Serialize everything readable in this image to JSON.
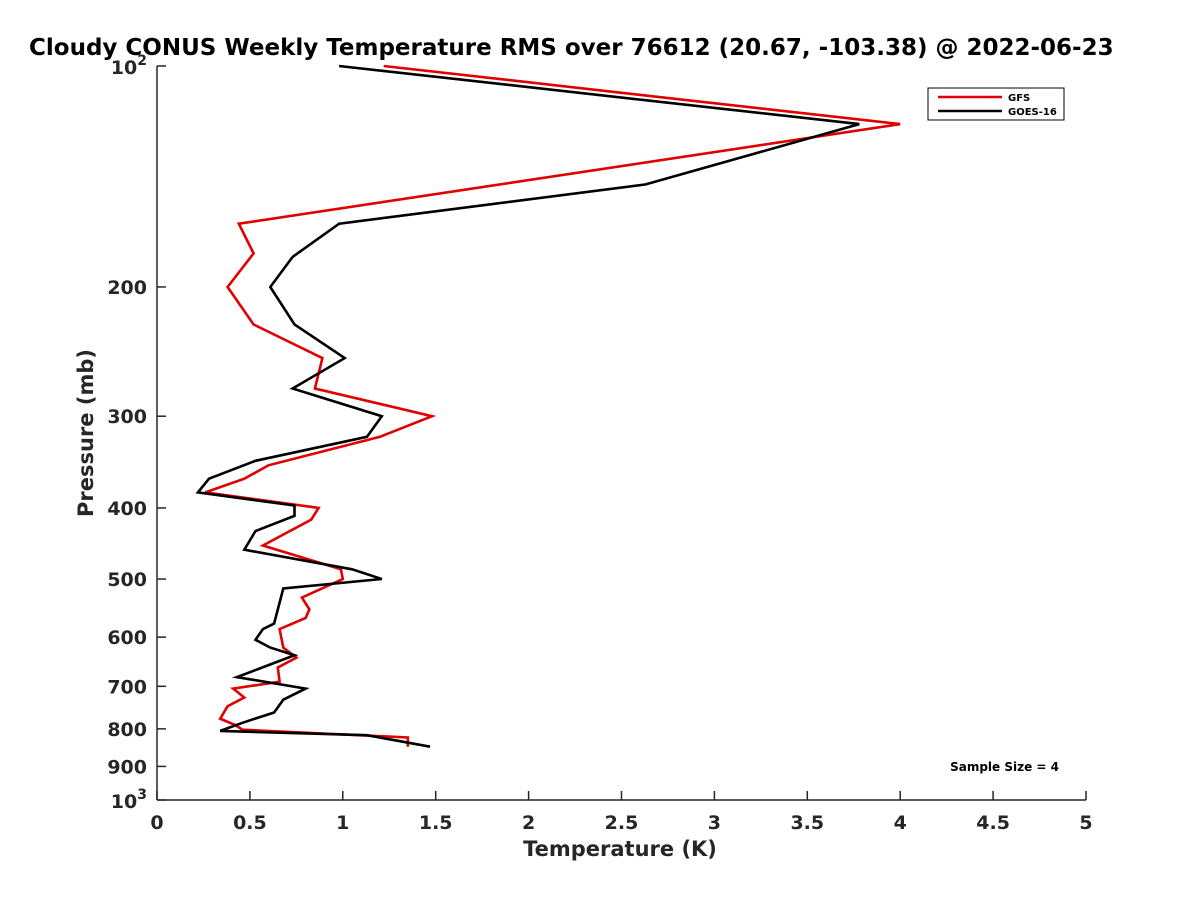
{
  "chart_data": {
    "type": "line",
    "title": "Cloudy CONUS Weekly Temperature RMS over 76612 (20.67, -103.38) @ 2022-06-23",
    "xlabel": "Temperature (K)",
    "ylabel": "Pressure (mb)",
    "xlim": [
      0,
      5
    ],
    "ylim": [
      100,
      1000
    ],
    "y_scale": "log",
    "y_reversed": true,
    "x_ticks": [
      0,
      0.5,
      1,
      1.5,
      2,
      2.5,
      3,
      3.5,
      4,
      4.5,
      5
    ],
    "x_tick_labels": [
      "0",
      "0.5",
      "1",
      "1.5",
      "2",
      "2.5",
      "3",
      "3.5",
      "4",
      "4.5",
      "5"
    ],
    "y_ticks": [
      100,
      200,
      300,
      400,
      500,
      600,
      700,
      800,
      900,
      1000
    ],
    "y_tick_labels": [
      {
        "text": "10",
        "sup": "2"
      },
      {
        "text": "200"
      },
      {
        "text": "300"
      },
      {
        "text": "400"
      },
      {
        "text": "500"
      },
      {
        "text": "600"
      },
      {
        "text": "700"
      },
      {
        "text": "800"
      },
      {
        "text": "900"
      },
      {
        "text": "10",
        "sup": "3"
      }
    ],
    "grid": false,
    "legend_position": "top-right",
    "annotation": "Sample Size = 4",
    "series": [
      {
        "name": "GFS",
        "color": "#e00000",
        "points": [
          [
            1.22,
            100
          ],
          [
            4.0,
            120
          ],
          [
            0.44,
            164
          ],
          [
            0.52,
            180
          ],
          [
            0.38,
            200
          ],
          [
            0.52,
            225
          ],
          [
            0.89,
            250
          ],
          [
            0.85,
            275
          ],
          [
            1.48,
            300
          ],
          [
            1.2,
            320
          ],
          [
            0.6,
            350
          ],
          [
            0.47,
            365
          ],
          [
            0.26,
            381
          ],
          [
            0.87,
            400
          ],
          [
            0.83,
            415
          ],
          [
            0.57,
            450
          ],
          [
            0.99,
            485
          ],
          [
            1.0,
            500
          ],
          [
            0.78,
            530
          ],
          [
            0.82,
            550
          ],
          [
            0.8,
            565
          ],
          [
            0.66,
            585
          ],
          [
            0.68,
            620
          ],
          [
            0.75,
            640
          ],
          [
            0.65,
            660
          ],
          [
            0.66,
            690
          ],
          [
            0.41,
            705
          ],
          [
            0.47,
            725
          ],
          [
            0.38,
            745
          ],
          [
            0.34,
            775
          ],
          [
            0.42,
            790
          ],
          [
            0.46,
            802
          ],
          [
            1.35,
            822
          ],
          [
            1.35,
            846
          ]
        ]
      },
      {
        "name": "GOES-16",
        "color": "#000000",
        "points": [
          [
            0.98,
            100
          ],
          [
            3.78,
            120
          ],
          [
            2.63,
            145
          ],
          [
            0.98,
            164
          ],
          [
            0.73,
            182
          ],
          [
            0.61,
            200
          ],
          [
            0.74,
            225
          ],
          [
            1.01,
            250
          ],
          [
            0.73,
            275
          ],
          [
            1.21,
            300
          ],
          [
            1.13,
            320
          ],
          [
            0.53,
            345
          ],
          [
            0.28,
            365
          ],
          [
            0.22,
            381
          ],
          [
            0.74,
            397
          ],
          [
            0.74,
            410
          ],
          [
            0.53,
            430
          ],
          [
            0.47,
            456
          ],
          [
            1.05,
            485
          ],
          [
            1.21,
            500
          ],
          [
            0.68,
            515
          ],
          [
            0.63,
            575
          ],
          [
            0.57,
            585
          ],
          [
            0.53,
            605
          ],
          [
            0.61,
            620
          ],
          [
            0.74,
            635
          ],
          [
            0.6,
            655
          ],
          [
            0.43,
            680
          ],
          [
            0.8,
            705
          ],
          [
            0.68,
            730
          ],
          [
            0.63,
            760
          ],
          [
            0.56,
            770
          ],
          [
            0.46,
            785
          ],
          [
            0.34,
            805
          ],
          [
            1.13,
            816
          ],
          [
            1.47,
            846
          ]
        ]
      }
    ]
  }
}
